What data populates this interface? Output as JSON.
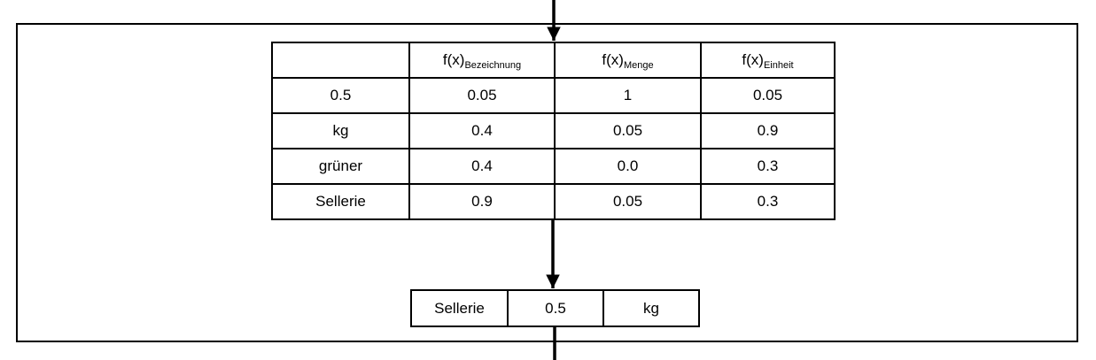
{
  "score_table": {
    "headers": [
      {
        "base": "",
        "sub": ""
      },
      {
        "base": "f(x)",
        "sub": "Bezeichnung"
      },
      {
        "base": "f(x)",
        "sub": "Menge"
      },
      {
        "base": "f(x)",
        "sub": "Einheit"
      }
    ],
    "rows": [
      {
        "token": "0.5",
        "bezeichnung": "0.05",
        "menge": "1",
        "einheit": "0.05"
      },
      {
        "token": "kg",
        "bezeichnung": "0.4",
        "menge": "0.05",
        "einheit": "0.9"
      },
      {
        "token": "grüner",
        "bezeichnung": "0.4",
        "menge": "0.0",
        "einheit": "0.3"
      },
      {
        "token": "Sellerie",
        "bezeichnung": "0.9",
        "menge": "0.05",
        "einheit": "0.3"
      }
    ]
  },
  "result": {
    "bezeichnung": "Sellerie",
    "menge": "0.5",
    "einheit": "kg"
  }
}
